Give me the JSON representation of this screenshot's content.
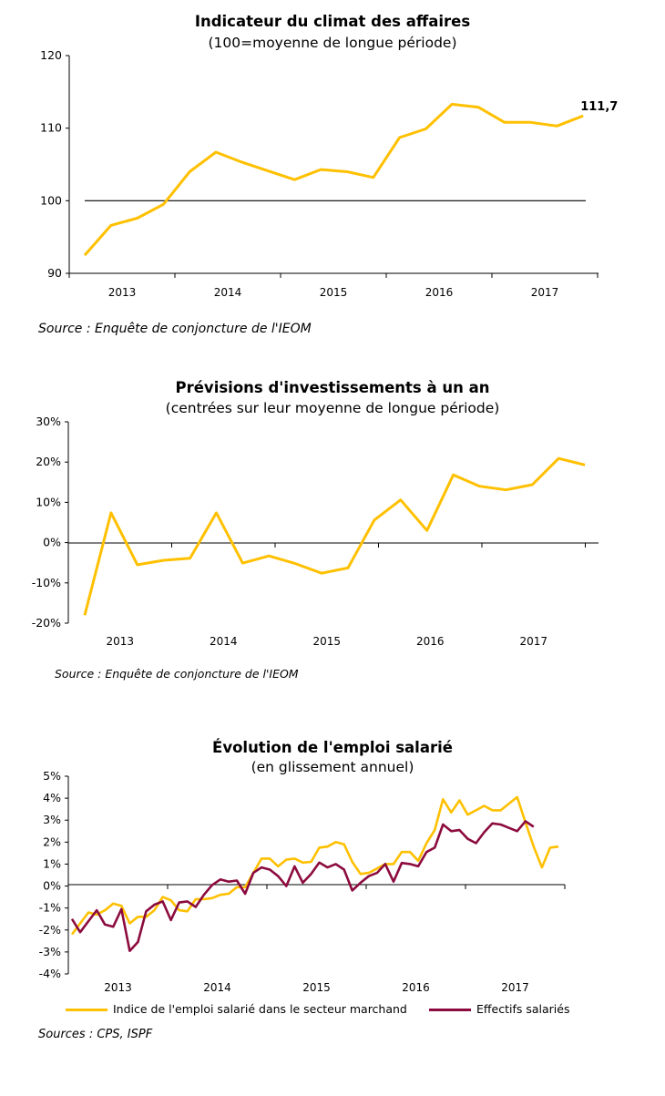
{
  "colors": {
    "yellow": "#FFC000",
    "crimson": "#8C0B3E",
    "axis": "#000000"
  },
  "chart_data": [
    {
      "type": "line",
      "title": "Indicateur du climat des affaires",
      "subtitle": "(100=moyenne de longue période)",
      "source": "Source : Enquête de conjoncture de l'IEOM",
      "x": [
        "2013-Q1",
        "2013-Q2",
        "2013-Q3",
        "2013-Q4",
        "2014-Q1",
        "2014-Q2",
        "2014-Q3",
        "2014-Q4",
        "2015-Q1",
        "2015-Q2",
        "2015-Q3",
        "2015-Q4",
        "2016-Q1",
        "2016-Q2",
        "2016-Q3",
        "2016-Q4",
        "2017-Q1",
        "2017-Q2",
        "2017-Q3",
        "2017-Q4"
      ],
      "xtick_labels": [
        "2013",
        "2014",
        "2015",
        "2016",
        "2017"
      ],
      "yticks": [
        "90",
        "100",
        "110",
        "120"
      ],
      "ylim": [
        90,
        120
      ],
      "reference_line": 100,
      "series": [
        {
          "values": [
            92.5,
            96.6,
            97.6,
            99.5,
            104.0,
            106.7,
            105.3,
            104.1,
            102.9,
            104.3,
            104.0,
            103.2,
            108.7,
            109.9,
            113.3,
            112.9,
            110.8,
            110.8,
            110.3,
            111.7
          ],
          "color": "#FFC000"
        }
      ],
      "annotation": "111,7",
      "grid": false
    },
    {
      "type": "line",
      "title": "Prévisions d'investissements à un an",
      "subtitle": "(centrées sur leur moyenne de longue période)",
      "source": "Source : Enquête de conjoncture de l'IEOM",
      "x": [
        "2013-Q1",
        "2013-Q2",
        "2013-Q3",
        "2013-Q4",
        "2014-Q1",
        "2014-Q2",
        "2014-Q3",
        "2014-Q4",
        "2015-Q1",
        "2015-Q2",
        "2015-Q3",
        "2015-Q4",
        "2016-Q1",
        "2016-Q2",
        "2016-Q3",
        "2016-Q4",
        "2017-Q1",
        "2017-Q2",
        "2017-Q3",
        "2017-Q4"
      ],
      "xtick_labels": [
        "2013",
        "2014",
        "2015",
        "2016",
        "2017"
      ],
      "yticks": [
        "-20%",
        "-10%",
        "0%",
        "10%",
        "20%",
        "30%"
      ],
      "ylim": [
        -20,
        30
      ],
      "series": [
        {
          "values": [
            -18.0,
            7.4,
            -5.5,
            -4.4,
            -3.9,
            7.4,
            -5.1,
            -3.3,
            -5.2,
            -7.6,
            -6.3,
            5.6,
            10.6,
            3.0,
            16.8,
            14.0,
            13.1,
            14.4,
            20.9,
            19.3
          ],
          "color": "#FFC000"
        }
      ],
      "grid": false
    },
    {
      "type": "line",
      "title": "Évolution de l'emploi salarié",
      "subtitle": "(en glissement annuel)",
      "source": "Sources : CPS, ISPF",
      "x_start": "2013-01",
      "x_frequency": "monthly",
      "xtick_labels": [
        "2013",
        "2014",
        "2015",
        "2016",
        "2017"
      ],
      "yticks": [
        "-4%",
        "-3%",
        "-2%",
        "-1%",
        "0%",
        "1%",
        "2%",
        "3%",
        "4%",
        "5%"
      ],
      "ylim": [
        -4,
        5
      ],
      "legend_position": "bottom",
      "series": [
        {
          "name": "Indice de l'emploi salarié dans le secteur marchand",
          "color": "#FFC000",
          "values": [
            -2.2,
            -1.7,
            -1.2,
            -1.3,
            -1.1,
            -0.8,
            -0.9,
            -1.7,
            -1.4,
            -1.4,
            -1.1,
            -0.5,
            -0.65,
            -1.1,
            -1.15,
            -0.6,
            -0.6,
            -0.55,
            -0.4,
            -0.35,
            -0.05,
            -0.05,
            0.6,
            1.25,
            1.25,
            0.9,
            1.2,
            1.25,
            1.07,
            1.1,
            1.75,
            1.8,
            2.0,
            1.9,
            1.1,
            0.55,
            0.6,
            0.8,
            1.0,
            1.0,
            1.55,
            1.55,
            1.15,
            1.95,
            2.55,
            3.95,
            3.35,
            3.9,
            3.25,
            3.45,
            3.65,
            3.45,
            3.45,
            3.75,
            4.05,
            2.9,
            1.8,
            0.85,
            1.75,
            1.8
          ]
        },
        {
          "name": "Effectifs salariés",
          "color": "#8C0B3E",
          "values": [
            -1.5,
            -2.1,
            -1.6,
            -1.1,
            -1.75,
            -1.85,
            -1.05,
            -2.95,
            -2.55,
            -1.15,
            -0.85,
            -0.7,
            -1.55,
            -0.75,
            -0.7,
            -0.95,
            -0.4,
            0.05,
            0.3,
            0.2,
            0.25,
            -0.35,
            0.6,
            0.85,
            0.75,
            0.45,
            0.0,
            0.9,
            0.15,
            0.55,
            1.07,
            0.85,
            1.0,
            0.75,
            -0.2,
            0.15,
            0.45,
            0.6,
            1.0,
            0.2,
            1.05,
            1.0,
            0.9,
            1.55,
            1.75,
            2.8,
            2.5,
            2.55,
            2.15,
            1.95,
            2.45,
            2.85,
            2.8,
            2.65,
            2.5,
            2.95,
            2.7
          ]
        }
      ],
      "grid": false
    }
  ]
}
